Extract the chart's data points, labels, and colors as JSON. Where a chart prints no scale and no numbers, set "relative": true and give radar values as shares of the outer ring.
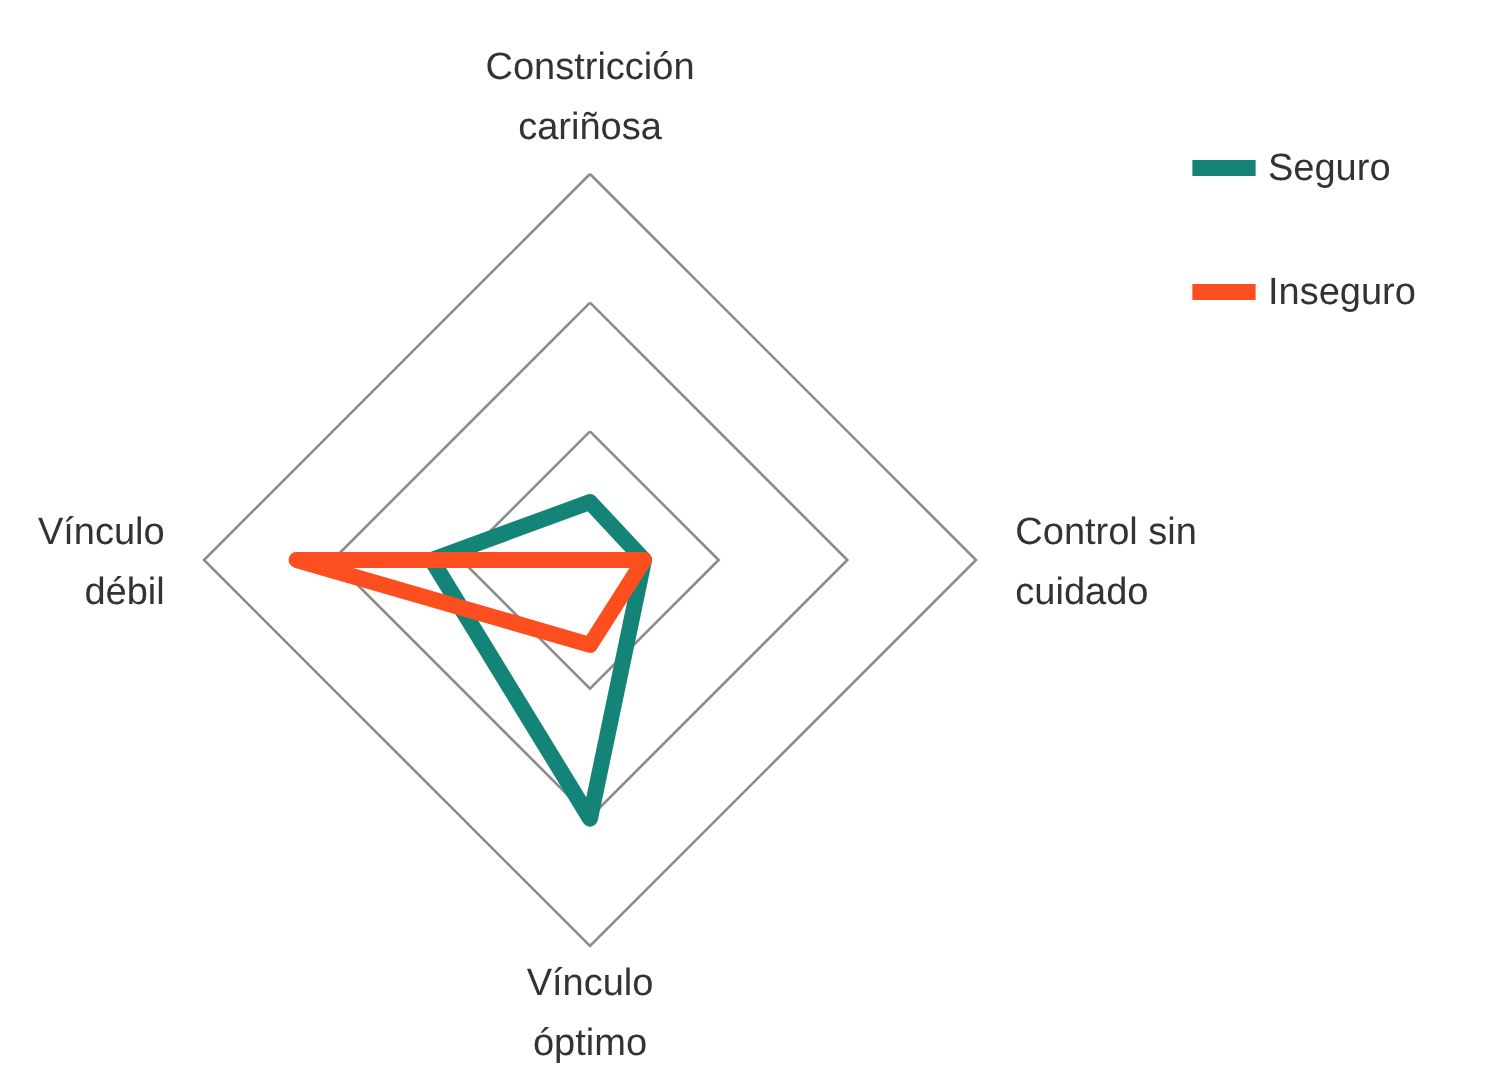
{
  "chart_data": {
    "type": "radar",
    "relative": true,
    "grid": true,
    "legend": "top right",
    "line_style": "solid",
    "marker": "none",
    "categories": [
      "Constricción cariñosa",
      "Control sin cuidado",
      "Vínculo óptimo",
      "Vínculo débil"
    ],
    "series": [
      {
        "name": "Seguro",
        "color": "#138477",
        "values": [
          0.15,
          0.14,
          0.67,
          0.41
        ]
      },
      {
        "name": "Inseguro",
        "color": "#fc4e1e",
        "values": [
          0,
          0.14,
          0.22,
          0.76
        ]
      }
    ]
  }
}
